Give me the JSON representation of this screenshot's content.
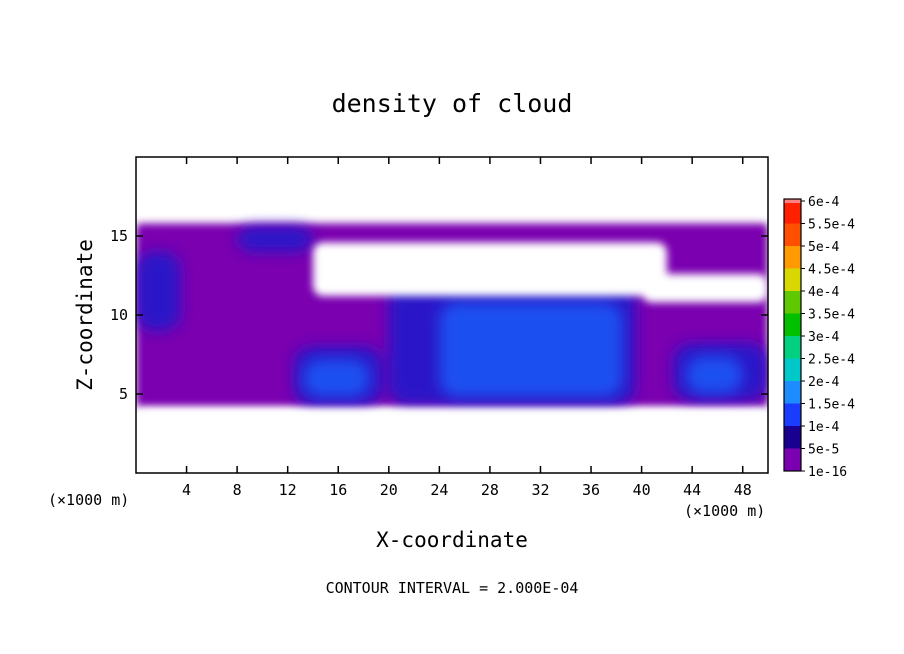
{
  "chart_data": {
    "type": "heatmap",
    "title": "density of cloud",
    "xlabel": "X-coordinate",
    "ylabel": "Z-coordinate",
    "x_unit_left": "(×1000 m)",
    "x_unit_right": "(×1000 m)",
    "footer": "CONTOUR INTERVAL = 2.000E-04",
    "xlim": [
      0,
      50
    ],
    "ylim": [
      0,
      20
    ],
    "x_ticks": [
      4,
      8,
      12,
      16,
      20,
      24,
      28,
      32,
      36,
      40,
      44,
      48
    ],
    "y_ticks": [
      5,
      10,
      15
    ],
    "colorbar": {
      "labels": [
        "1e-16",
        "5e-5",
        "1e-4",
        "1.5e-4",
        "2e-4",
        "2.5e-4",
        "3e-4",
        "3.5e-4",
        "4e-4",
        "4.5e-4",
        "5e-4",
        "5.5e-4",
        "6e-4"
      ],
      "colors": [
        "#7a00b0",
        "#1a0090",
        "#1a3cff",
        "#1c8cff",
        "#00c8c8",
        "#00d080",
        "#00c000",
        "#60c800",
        "#d8d800",
        "#ff9a00",
        "#ff5000",
        "#ff2000",
        "#ff8080"
      ]
    },
    "cloud_layers": [
      {
        "level": 0,
        "color": "#7a00b0",
        "regions": [
          {
            "x": [
              0,
              50
            ],
            "z": [
              4.2,
              15.8
            ]
          }
        ]
      },
      {
        "level": 1,
        "color": "#2a18c8",
        "regions": [
          {
            "x": [
              12.5,
              19.5
            ],
            "z": [
              4.3,
              8.0
            ]
          },
          {
            "x": [
              20,
              39.5
            ],
            "z": [
              4.3,
              12.8
            ]
          },
          {
            "x": [
              42.5,
              50
            ],
            "z": [
              4.6,
              8.2
            ]
          },
          {
            "x": [
              0,
              3.5
            ],
            "z": [
              9.0,
              14.0
            ]
          },
          {
            "x": [
              8,
              14
            ],
            "z": [
              14.0,
              15.6
            ]
          }
        ]
      },
      {
        "level": 2,
        "color": "#1f50f0",
        "regions": [
          {
            "x": [
              13.2,
              18.5
            ],
            "z": [
              4.8,
              7.2
            ]
          },
          {
            "x": [
              24,
              38.5
            ],
            "z": [
              4.8,
              10.8
            ]
          },
          {
            "x": [
              43.5,
              48
            ],
            "z": [
              5.0,
              7.4
            ]
          }
        ]
      }
    ],
    "clear_air": [
      {
        "x": [
          0,
          50
        ],
        "z": [
          0,
          4.0
        ]
      },
      {
        "x": [
          0,
          50
        ],
        "z": [
          17.8,
          20
        ]
      },
      {
        "x": [
          14,
          42
        ],
        "z": [
          11.2,
          14.6
        ]
      },
      {
        "x": [
          40,
          50
        ],
        "z": [
          10.8,
          12.6
        ]
      }
    ]
  }
}
